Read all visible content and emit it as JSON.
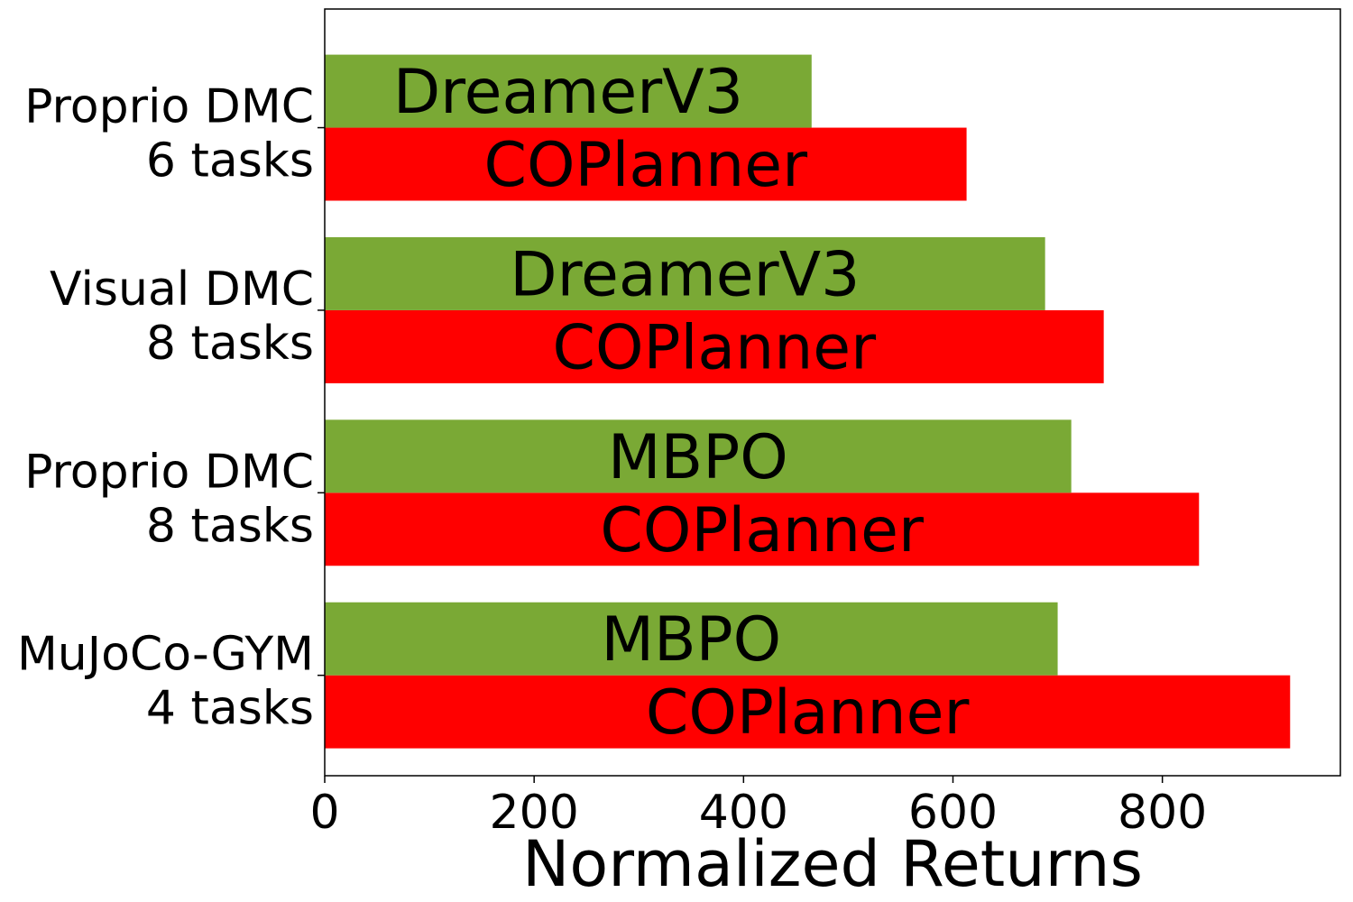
{
  "chart_data": {
    "type": "bar",
    "orientation": "horizontal",
    "xlabel": "Normalized Returns",
    "ylabel": "",
    "title": "",
    "xlim": [
      0,
      970
    ],
    "xticks": [
      0,
      200,
      400,
      600,
      800
    ],
    "grid": false,
    "legend": "none",
    "groups": [
      {
        "label": [
          "MuJoCo-GYM",
          "4 tasks"
        ],
        "bars": [
          {
            "name": "COPlanner",
            "value": 922,
            "color": "#ff0000"
          },
          {
            "name": "MBPO",
            "value": 700,
            "color": "#7aa935"
          }
        ]
      },
      {
        "label": [
          "Proprio DMC",
          "8 tasks"
        ],
        "bars": [
          {
            "name": "COPlanner",
            "value": 835,
            "color": "#ff0000"
          },
          {
            "name": "MBPO",
            "value": 713,
            "color": "#7aa935"
          }
        ]
      },
      {
        "label": [
          "Visual DMC",
          "8 tasks"
        ],
        "bars": [
          {
            "name": "COPlanner",
            "value": 744,
            "color": "#ff0000"
          },
          {
            "name": "DreamerV3",
            "value": 688,
            "color": "#7aa935"
          }
        ]
      },
      {
        "label": [
          "Proprio DMC",
          "6 tasks"
        ],
        "bars": [
          {
            "name": "COPlanner",
            "value": 613,
            "color": "#ff0000"
          },
          {
            "name": "DreamerV3",
            "value": 465,
            "color": "#7aa935"
          }
        ]
      }
    ]
  }
}
